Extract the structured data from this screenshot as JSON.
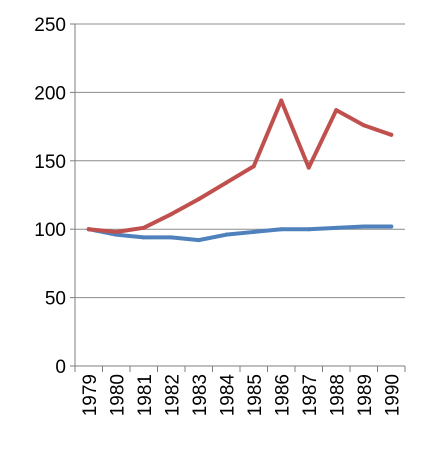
{
  "chart_data": {
    "type": "line",
    "title": "",
    "xlabel": "",
    "ylabel": "",
    "x": [
      "1979",
      "1980",
      "1981",
      "1982",
      "1983",
      "1984",
      "1985",
      "1986",
      "1987",
      "1988",
      "1989",
      "1990"
    ],
    "ylim": [
      0,
      250
    ],
    "yticks": [
      "0",
      "50",
      "100",
      "150",
      "200",
      "250"
    ],
    "grid": true,
    "legend": "none",
    "series": [
      {
        "color": "#4f81bd",
        "values": [
          100,
          96,
          94,
          94,
          92,
          96,
          98,
          100,
          100,
          101,
          102,
          102
        ]
      },
      {
        "color": "#c0504d",
        "values": [
          100,
          98,
          101,
          111,
          122,
          134,
          146,
          194,
          145,
          187,
          176,
          169
        ]
      }
    ]
  }
}
